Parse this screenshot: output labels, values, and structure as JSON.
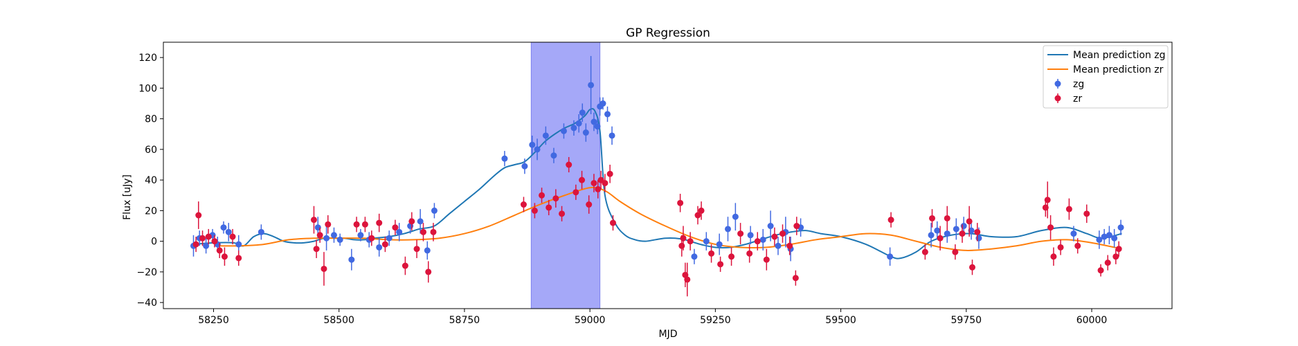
{
  "chart_data": {
    "type": "scatter",
    "title": "GP Regression",
    "xlabel": "MJD",
    "ylabel": "Flux [uJy]",
    "xlim": [
      58150,
      60160
    ],
    "ylim": [
      -44,
      130
    ],
    "xticks": [
      58250,
      58500,
      58750,
      59000,
      59250,
      59500,
      59750,
      60000
    ],
    "yticks": [
      -40,
      -20,
      0,
      20,
      40,
      60,
      80,
      100,
      120
    ],
    "grid": false,
    "legend_position": "top-right",
    "shaded_region": {
      "x_start": 58883,
      "x_end": 59020,
      "color": "#a5a8f8"
    },
    "colors": {
      "zg_points": "#4169e1",
      "zr_points": "#dc143c",
      "zg_line": "#1f77b4",
      "zr_line": "#ff7f0e"
    },
    "series": [
      {
        "name": "Mean prediction zg",
        "kind": "line",
        "x": [
          58210,
          58250,
          58290,
          58310,
          58330,
          58350,
          58370,
          58390,
          58410,
          58430,
          58450,
          58470,
          58490,
          58510,
          58530,
          58550,
          58570,
          58600,
          58630,
          58660,
          58690,
          58720,
          58750,
          58780,
          58810,
          58830,
          58850,
          58870,
          58890,
          58910,
          58930,
          58950,
          58970,
          58990,
          59000,
          59010,
          59020,
          59030,
          59050,
          59070,
          59090,
          59110,
          59130,
          59150,
          59170,
          59190,
          59220,
          59250,
          59280,
          59310,
          59340,
          59370,
          59400,
          59430,
          59460,
          59500,
          59550,
          59600,
          59620,
          59650,
          59680,
          59720,
          59760,
          59800,
          59850,
          59900,
          59950,
          59990,
          60020,
          60060
        ],
        "y": [
          -2,
          -1,
          -1,
          -3,
          3,
          5,
          3,
          0,
          -1,
          -1,
          0,
          2,
          2,
          2,
          1,
          1,
          2,
          3,
          5,
          8,
          10,
          18,
          26,
          34,
          43,
          48,
          50,
          52,
          58,
          65,
          70,
          74,
          77,
          82,
          86,
          85,
          72,
          30,
          12,
          4,
          1,
          0,
          1,
          2,
          2,
          1,
          -2,
          -4,
          -4,
          -2,
          1,
          4,
          6,
          7,
          5,
          3,
          -2,
          -10,
          -11,
          -7,
          0,
          4,
          5,
          3,
          3,
          7,
          9,
          5,
          2,
          5
        ]
      },
      {
        "name": "Mean prediction zr",
        "kind": "line",
        "x": [
          58260,
          58300,
          58350,
          58400,
          58450,
          58500,
          58550,
          58600,
          58650,
          58700,
          58750,
          58800,
          58850,
          58900,
          58950,
          59000,
          59030,
          59060,
          59100,
          59150,
          59200,
          59250,
          59300,
          59350,
          59400,
          59450,
          59500,
          59550,
          59600,
          59650,
          59700,
          59750,
          59800,
          59850,
          59900,
          59950,
          60000,
          60060
        ],
        "y": [
          -3,
          -3,
          -2,
          1,
          2,
          2,
          2,
          1,
          1,
          2,
          5,
          10,
          17,
          24,
          30,
          35,
          33,
          26,
          18,
          10,
          3,
          -2,
          -4,
          -4,
          -2,
          1,
          3,
          5,
          4,
          0,
          -4,
          -6,
          -5,
          -3,
          0,
          1,
          -1,
          -5
        ]
      },
      {
        "name": "zg",
        "kind": "errorbar",
        "x": [
          58210,
          58222,
          58235,
          58248,
          58258,
          58270,
          58280,
          58300,
          58345,
          58458,
          58475,
          58490,
          58502,
          58525,
          58543,
          58560,
          58580,
          58600,
          58620,
          58642,
          58662,
          58676,
          58690,
          58830,
          58870,
          58885,
          58895,
          58912,
          58928,
          58948,
          58968,
          58978,
          58985,
          58992,
          59002,
          59008,
          59015,
          59020,
          59026,
          59035,
          59044,
          59208,
          59232,
          59258,
          59275,
          59290,
          59320,
          59345,
          59360,
          59375,
          59390,
          59400,
          59420,
          59598,
          59680,
          59692,
          59712,
          59730,
          59745,
          59760,
          59775,
          59964,
          60015,
          60025,
          60035,
          60045,
          60058
        ],
        "y": [
          -3,
          2,
          -3,
          4,
          -2,
          9,
          6,
          -2,
          6,
          9,
          2,
          4,
          1,
          -12,
          4,
          1,
          -4,
          2,
          6,
          10,
          13,
          -6,
          20,
          54,
          49,
          63,
          60,
          69,
          56,
          72,
          74,
          77,
          84,
          71,
          102,
          78,
          75,
          88,
          90,
          83,
          69,
          -10,
          0,
          -2,
          8,
          16,
          4,
          1,
          10,
          -3,
          6,
          -5,
          9,
          -10,
          4,
          7,
          5,
          8,
          10,
          7,
          2,
          5,
          1,
          3,
          4,
          2,
          9
        ],
        "err": [
          7,
          5,
          5,
          4,
          5,
          4,
          6,
          6,
          5,
          7,
          8,
          5,
          4,
          7,
          4,
          5,
          6,
          5,
          6,
          5,
          8,
          6,
          5,
          5,
          5,
          6,
          7,
          6,
          5,
          5,
          5,
          6,
          6,
          6,
          19,
          6,
          5,
          6,
          4,
          5,
          6,
          5,
          6,
          7,
          8,
          9,
          6,
          7,
          10,
          6,
          10,
          8,
          6,
          6,
          8,
          6,
          6,
          7,
          6,
          6,
          7,
          5,
          6,
          5,
          6,
          6,
          5
        ]
      },
      {
        "name": "zr",
        "kind": "errorbar",
        "x": [
          58215,
          58220,
          58228,
          58240,
          58252,
          58262,
          58272,
          58288,
          58300,
          58450,
          58455,
          58462,
          58470,
          58478,
          58535,
          58552,
          58565,
          58580,
          58592,
          58612,
          58632,
          58645,
          58655,
          58668,
          58678,
          58688,
          58868,
          58890,
          58904,
          58918,
          58932,
          58944,
          58958,
          58972,
          58984,
          58998,
          59008,
          59016,
          59022,
          59030,
          59040,
          59046,
          59180,
          59183,
          59186,
          59190,
          59194,
          59200,
          59215,
          59222,
          59242,
          59260,
          59282,
          59300,
          59318,
          59334,
          59352,
          59368,
          59384,
          59398,
          59410,
          59412,
          59600,
          59668,
          59682,
          59698,
          59712,
          59728,
          59742,
          59756,
          59762,
          59772,
          59908,
          59912,
          59918,
          59924,
          59938,
          59955,
          59972,
          59990,
          60018,
          60032,
          60048,
          60054
        ],
        "y": [
          -2,
          17,
          2,
          3,
          0,
          -6,
          -10,
          3,
          -11,
          14,
          -5,
          4,
          -18,
          11,
          11,
          11,
          2,
          12,
          -2,
          9,
          -16,
          13,
          -5,
          6,
          -20,
          6,
          24,
          20,
          30,
          22,
          28,
          18,
          50,
          32,
          40,
          24,
          38,
          34,
          40,
          38,
          44,
          12,
          25,
          -3,
          2,
          -22,
          -25,
          0,
          17,
          20,
          -8,
          -15,
          -10,
          5,
          -8,
          0,
          -12,
          3,
          5,
          -3,
          -24,
          10,
          14,
          -7,
          15,
          2,
          15,
          -7,
          5,
          13,
          -17,
          6,
          22,
          27,
          9,
          -10,
          -4,
          21,
          -3,
          18,
          -19,
          -14,
          -10,
          -5
        ],
        "err": [
          5,
          9,
          5,
          5,
          4,
          5,
          6,
          5,
          5,
          9,
          6,
          5,
          11,
          6,
          5,
          5,
          5,
          6,
          5,
          5,
          6,
          6,
          6,
          6,
          7,
          6,
          5,
          5,
          5,
          5,
          6,
          5,
          5,
          5,
          6,
          6,
          6,
          6,
          6,
          6,
          6,
          5,
          6,
          7,
          8,
          8,
          11,
          6,
          6,
          6,
          6,
          5,
          6,
          7,
          6,
          6,
          7,
          6,
          6,
          6,
          5,
          6,
          5,
          5,
          6,
          8,
          8,
          5,
          6,
          10,
          5,
          6,
          6,
          12,
          8,
          6,
          5,
          7,
          5,
          6,
          4,
          5,
          5,
          5
        ]
      }
    ]
  }
}
